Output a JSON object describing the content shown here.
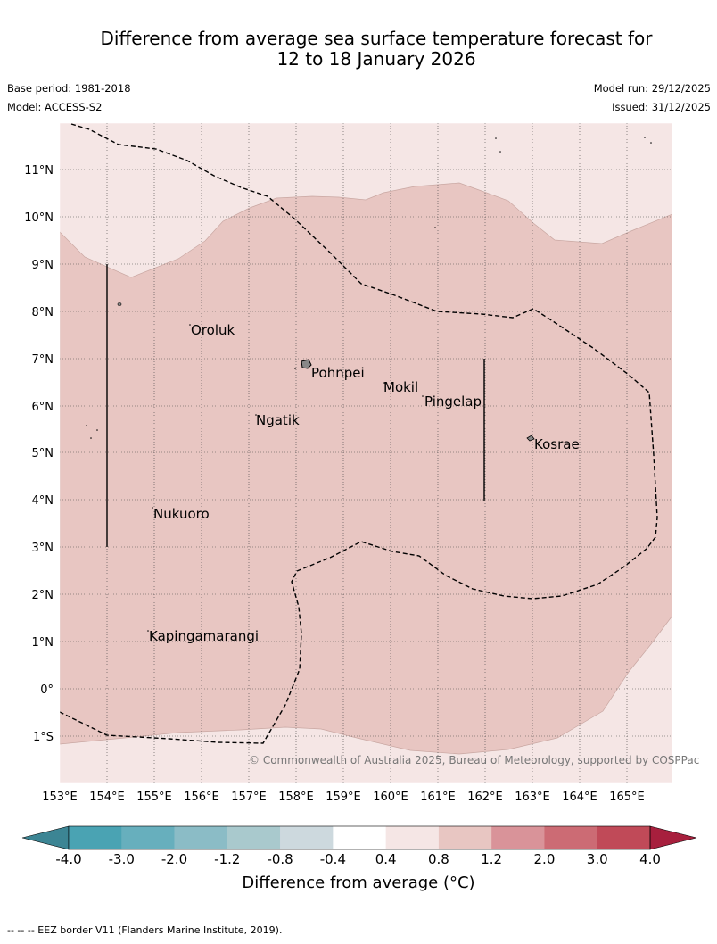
{
  "header": {
    "title_line1": "Difference from average sea surface temperature forecast for",
    "title_line2": "12 to 18 January 2026",
    "base_period": "Base period: 1981-2018",
    "model": "Model: ACCESS-S2",
    "model_run": "Model run: 29/12/2025",
    "issued": "Issued: 31/12/2025"
  },
  "map": {
    "lat_labels": [
      "11°N",
      "10°N",
      "9°N",
      "8°N",
      "7°N",
      "6°N",
      "5°N",
      "4°N",
      "3°N",
      "2°N",
      "1°N",
      "0°",
      "1°S"
    ],
    "lon_labels": [
      "153°E",
      "154°E",
      "155°E",
      "156°E",
      "157°E",
      "158°E",
      "159°E",
      "160°E",
      "161°E",
      "162°E",
      "163°E",
      "164°E",
      "165°E"
    ],
    "places": [
      "Oroluk",
      "Pohnpei",
      "Mokil",
      "Pingelap",
      "Ngatik",
      "Kosrae",
      "Nukuoro",
      "Kapingamarangi"
    ],
    "copyright": "© Commonwealth of Australia 2025, Bureau of Meteorology, supported by COSPPac"
  },
  "colorbar": {
    "ticks": [
      "-4.0",
      "-3.0",
      "-2.0",
      "-1.2",
      "-0.8",
      "-0.4",
      "0.4",
      "0.8",
      "1.2",
      "2.0",
      "3.0",
      "4.0"
    ],
    "colors": [
      "#4aa3b3",
      "#67afbd",
      "#8bbcc6",
      "#a9c9cd",
      "#cdd9de",
      "#ffffff",
      "#f5e6e5",
      "#e8c6c2",
      "#d99399",
      "#cc6b74",
      "#c04a58"
    ],
    "under_color": "#3c8594",
    "over_color": "#a71f3d",
    "title": "Difference from average (°C)"
  },
  "fill_colors": {
    "warm_light": "#f5e6e5",
    "warm_mid": "#e8c6c2"
  },
  "footer": "--  --  -- EEZ border V11 (Flanders Marine Institute, 2019)."
}
